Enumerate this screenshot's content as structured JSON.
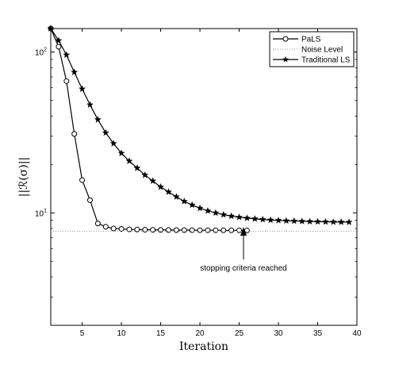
{
  "chart_data": {
    "type": "line",
    "xlabel": "Iteration",
    "ylabel": "||ℛ(σ)||",
    "xlim": [
      1,
      40
    ],
    "ylim": [
      2,
      140
    ],
    "yscale": "log",
    "grid": false,
    "legend_position": "top-right",
    "xticks": [
      5,
      10,
      15,
      20,
      25,
      30,
      35,
      40
    ],
    "yticks": [
      10,
      100
    ],
    "series": [
      {
        "name": "PaLS",
        "marker": "circle",
        "x": [
          1,
          2,
          3,
          4,
          5,
          6,
          7,
          8,
          9,
          10,
          11,
          12,
          13,
          14,
          15,
          16,
          17,
          18,
          19,
          20,
          21,
          22,
          23,
          24,
          25,
          26
        ],
        "y": [
          140,
          108,
          66,
          31,
          16,
          12,
          8.6,
          8.2,
          8.0,
          7.95,
          7.9,
          7.88,
          7.86,
          7.85,
          7.84,
          7.83,
          7.82,
          7.82,
          7.81,
          7.8,
          7.8,
          7.8,
          7.79,
          7.79,
          7.79,
          7.78
        ]
      },
      {
        "name": "Noise Level",
        "marker": "none",
        "style": "dotted",
        "x": [
          1,
          40
        ],
        "y": [
          7.7,
          7.7
        ]
      },
      {
        "name": "Traditional LS",
        "marker": "star",
        "x": [
          1,
          2,
          3,
          4,
          5,
          6,
          7,
          8,
          9,
          10,
          11,
          12,
          13,
          14,
          15,
          16,
          17,
          18,
          19,
          20,
          21,
          22,
          23,
          24,
          25,
          26,
          27,
          28,
          29,
          30,
          31,
          32,
          33,
          34,
          35,
          36,
          37,
          38,
          39
        ],
        "y": [
          140,
          118,
          96,
          75,
          59,
          47,
          38,
          31.5,
          27,
          23.5,
          21,
          19,
          17.2,
          15.8,
          14.5,
          13.5,
          12.6,
          11.8,
          11.2,
          10.7,
          10.3,
          10.0,
          9.75,
          9.55,
          9.4,
          9.28,
          9.18,
          9.1,
          9.03,
          8.98,
          8.93,
          8.9,
          8.87,
          8.84,
          8.82,
          8.8,
          8.78,
          8.77,
          8.76
        ]
      }
    ],
    "annotations": [
      {
        "text": "stopping criteria reached",
        "arrow_to": {
          "x": 26,
          "y": 7.78
        }
      }
    ]
  }
}
